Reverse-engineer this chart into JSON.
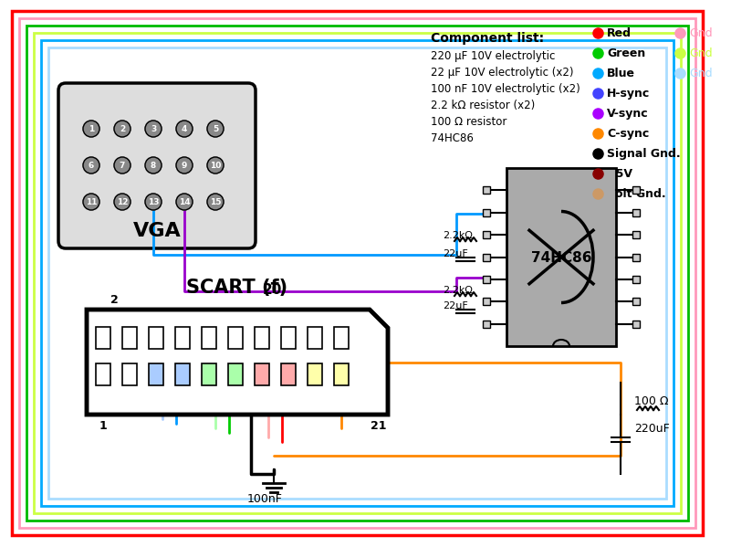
{
  "title": "",
  "bg_color": "#ffffff",
  "border_colors": [
    "#ff0000",
    "#ff69b4",
    "#00aa00",
    "#7cfc00",
    "#00bfff",
    "#add8e6"
  ],
  "legend_items": [
    {
      "label": "Red",
      "color": "#ff0000"
    },
    {
      "label": "Green",
      "color": "#00cc00"
    },
    {
      "label": "Blue",
      "color": "#00aaff"
    },
    {
      "label": "H-sync",
      "color": "#4444ff"
    },
    {
      "label": "V-sync",
      "color": "#aa00ff"
    },
    {
      "label": "C-sync",
      "color": "#ff8800"
    },
    {
      "label": "Signal Gnd.",
      "color": "#000000"
    },
    {
      "label": "+5V",
      "color": "#880000"
    },
    {
      "label": "Volt Gnd.",
      "color": "#cc9966"
    }
  ],
  "legend_gnd": [
    {
      "label": "Gnd",
      "color": "#ff99bb"
    },
    {
      "label": "Gnd",
      "color": "#ccff44"
    },
    {
      "label": "Gnd",
      "color": "#aaddff"
    }
  ],
  "component_list": [
    "220 μF 10V electrolytic",
    "22 μF 10V electrolytic (x2)",
    "100 nF 10V electrolytic (x2)",
    "2.2 kΩ resistor (x2)",
    "100 Ω resistor",
    "74HC86"
  ]
}
